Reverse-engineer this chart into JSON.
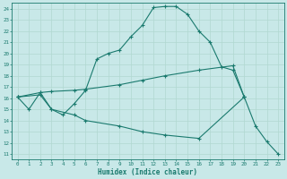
{
  "title": "",
  "xlabel": "Humidex (Indice chaleur)",
  "ylabel": "",
  "xlim": [
    -0.5,
    23.5
  ],
  "ylim": [
    10.5,
    24.5
  ],
  "xticks": [
    0,
    1,
    2,
    3,
    4,
    5,
    6,
    7,
    8,
    9,
    10,
    11,
    12,
    13,
    14,
    15,
    16,
    17,
    18,
    19,
    20,
    21,
    22,
    23
  ],
  "yticks": [
    11,
    12,
    13,
    14,
    15,
    16,
    17,
    18,
    19,
    20,
    21,
    22,
    23,
    24
  ],
  "background_color": "#c8e8e8",
  "line_color": "#1a7a6e",
  "grid_color": "#b0d8d0",
  "lines": [
    {
      "x": [
        0,
        1,
        2,
        3,
        4,
        5,
        6,
        7,
        8,
        9,
        10,
        11,
        12,
        13,
        14,
        15,
        16,
        17,
        18,
        19,
        20
      ],
      "y": [
        16.1,
        15.0,
        16.5,
        15.0,
        14.5,
        15.5,
        16.7,
        19.5,
        20.0,
        20.3,
        21.5,
        22.5,
        24.1,
        24.2,
        24.2,
        23.5,
        22.0,
        21.0,
        18.8,
        18.5,
        16.1
      ],
      "marker": "+"
    },
    {
      "x": [
        0,
        2,
        3,
        5,
        6,
        9,
        11,
        13,
        16,
        19,
        20
      ],
      "y": [
        16.1,
        16.5,
        16.6,
        16.7,
        16.8,
        17.2,
        17.6,
        18.0,
        18.5,
        18.9,
        16.1
      ],
      "marker": "+"
    },
    {
      "x": [
        0,
        2,
        3,
        5,
        6,
        9,
        11,
        13,
        16,
        20,
        21,
        22,
        23
      ],
      "y": [
        16.1,
        16.3,
        15.0,
        14.5,
        14.0,
        13.5,
        13.0,
        12.7,
        12.4,
        16.1,
        13.5,
        12.1,
        11.0
      ],
      "marker": "+"
    }
  ]
}
